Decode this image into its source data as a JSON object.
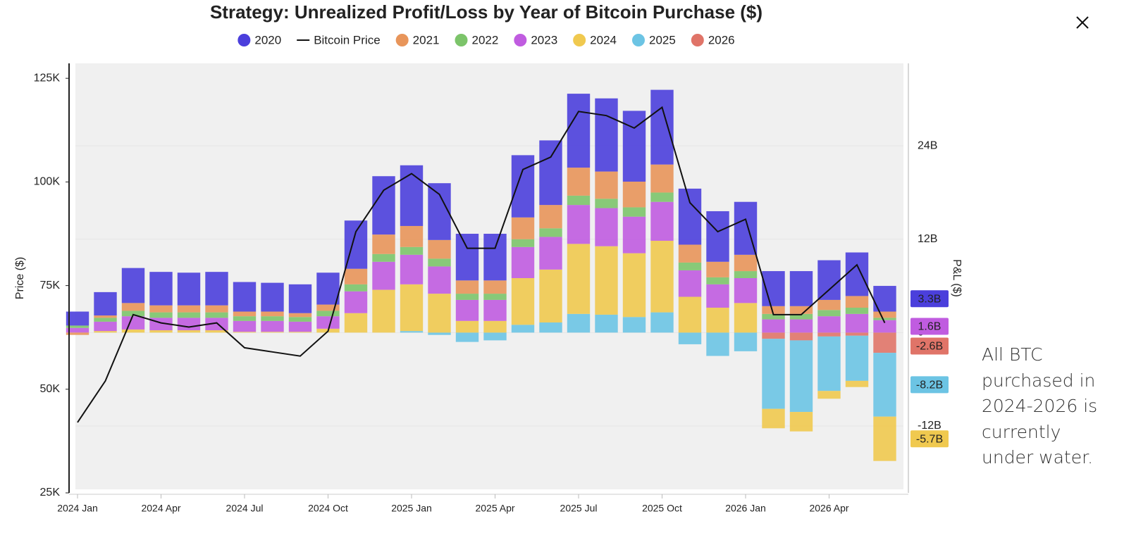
{
  "chart_data": {
    "type": "bar",
    "title": "Strategy: Unrealized Profit/Loss by Year of Bitcoin Purchase ($)",
    "y_label": "Price ($)",
    "y2_label": "P&L ($)",
    "annotation": "All BTC purchased in 2024-2026 is currently under water.",
    "categories": [
      "2024 Jan",
      null,
      null,
      "2024 Apr",
      null,
      null,
      "2024 Jul",
      null,
      null,
      "2024 Oct",
      null,
      null,
      "2025 Jan",
      null,
      null,
      "2025 Apr",
      null,
      null,
      "2025 Jul",
      null,
      null,
      "2025 Oct",
      null,
      null,
      "2026 Jan",
      null,
      null,
      "2026 Apr",
      null,
      null
    ],
    "ylim": [
      25000,
      128600
    ],
    "yticks": [
      {
        "value": 25000,
        "label": "25K"
      },
      {
        "value": 50000,
        "label": "50K"
      },
      {
        "value": 75000,
        "label": "75K"
      },
      {
        "value": 100000,
        "label": "100K"
      },
      {
        "value": 125000,
        "label": "125K"
      }
    ],
    "y2lim": [
      -20.6,
      34.6
    ],
    "y2ticks": [
      {
        "value": -12,
        "label": "-12B"
      },
      0,
      {
        "value": 12,
        "label": "12B"
      },
      {
        "value": 24,
        "label": "24B"
      }
    ],
    "grid": true,
    "stacked": true,
    "series": [
      {
        "name": "2020",
        "color": "#4b3fdc",
        "axis": "y2",
        "values": [
          1.8,
          3.0,
          4.5,
          4.3,
          4.2,
          4.3,
          3.8,
          3.7,
          3.7,
          4.1,
          6.2,
          7.5,
          7.8,
          7.3,
          6.0,
          6.0,
          8.0,
          8.3,
          9.5,
          9.4,
          9.1,
          9.6,
          7.2,
          6.5,
          6.8,
          4.5,
          4.5,
          5.1,
          5.6,
          3.3
        ],
        "value_labels": [
          null,
          null,
          null,
          null,
          null,
          null,
          null,
          null,
          null,
          null,
          null,
          null,
          null,
          null,
          null,
          null,
          null,
          null,
          null,
          null,
          null,
          null,
          null,
          null,
          null,
          null,
          null,
          null,
          null,
          "3.3B"
        ]
      },
      {
        "name": "Bitcoin Price",
        "color": "#111111",
        "axis": "y",
        "type": "line",
        "values": [
          42000,
          52000,
          68000,
          66000,
          65000,
          66000,
          60000,
          59000,
          58000,
          64000,
          88000,
          98000,
          102000,
          97000,
          84000,
          84000,
          103000,
          106000,
          117000,
          116000,
          113000,
          118000,
          95000,
          88000,
          91000,
          68000,
          68000,
          74000,
          80000,
          66000
        ]
      },
      {
        "name": "2021",
        "color": "#e8955a",
        "axis": "y2",
        "values": [
          -0.3,
          0.3,
          1.0,
          0.9,
          0.9,
          0.9,
          0.6,
          0.6,
          0.5,
          0.8,
          2.0,
          2.5,
          2.7,
          2.4,
          1.7,
          1.7,
          2.8,
          3.0,
          3.6,
          3.5,
          3.3,
          3.6,
          2.3,
          2.0,
          2.1,
          1.0,
          1.0,
          1.3,
          1.5,
          0.8
        ]
      },
      {
        "name": "2022",
        "color": "#7cc46a",
        "axis": "y2",
        "values": [
          0.3,
          0.5,
          0.7,
          0.7,
          0.7,
          0.7,
          0.6,
          0.6,
          0.6,
          0.7,
          0.9,
          1.0,
          1.0,
          1.0,
          0.8,
          0.8,
          1.0,
          1.1,
          1.2,
          1.2,
          1.2,
          1.2,
          1.0,
          0.9,
          0.9,
          0.7,
          0.7,
          0.8,
          0.8,
          0.3
        ]
      },
      {
        "name": "2023",
        "color": "#c05ce0",
        "axis": "y2",
        "values": [
          0.6,
          1.2,
          1.7,
          1.6,
          1.6,
          1.6,
          1.4,
          1.4,
          1.3,
          1.6,
          2.8,
          3.6,
          3.8,
          3.5,
          2.7,
          2.7,
          4.0,
          4.2,
          5.0,
          4.9,
          4.7,
          5.0,
          3.4,
          3.0,
          3.2,
          1.7,
          1.7,
          2.1,
          2.4,
          1.6
        ],
        "value_labels": [
          null,
          null,
          null,
          null,
          null,
          null,
          null,
          null,
          null,
          null,
          null,
          null,
          null,
          null,
          null,
          null,
          null,
          null,
          null,
          null,
          null,
          null,
          null,
          null,
          null,
          null,
          null,
          null,
          null,
          "1.6B"
        ]
      },
      {
        "name": "2024",
        "color": "#f0c94f",
        "axis": "y2",
        "values": [
          0,
          0.2,
          0.4,
          0.3,
          0.3,
          0.3,
          0.1,
          0.1,
          0.1,
          0.5,
          2.5,
          5.5,
          6.0,
          5.0,
          1.5,
          1.5,
          6.0,
          6.8,
          9.0,
          8.8,
          8.2,
          9.2,
          4.6,
          3.2,
          3.8,
          -2.5,
          -2.5,
          -1.0,
          -0.8,
          -5.7
        ],
        "value_labels": [
          null,
          null,
          null,
          null,
          null,
          null,
          null,
          null,
          null,
          null,
          null,
          null,
          null,
          null,
          null,
          null,
          null,
          null,
          null,
          null,
          null,
          null,
          null,
          null,
          null,
          null,
          null,
          null,
          null,
          "-5.7B"
        ]
      },
      {
        "name": "2025",
        "color": "#6cc4e4",
        "axis": "y2",
        "values": [
          null,
          null,
          null,
          null,
          null,
          null,
          null,
          null,
          null,
          null,
          null,
          null,
          0.2,
          -0.3,
          -1.2,
          -1.0,
          1.0,
          1.3,
          2.4,
          2.3,
          2.0,
          2.6,
          -1.5,
          -3.0,
          -2.4,
          -9.0,
          -9.2,
          -7.0,
          -5.8,
          -8.2
        ],
        "value_labels": [
          null,
          null,
          null,
          null,
          null,
          null,
          null,
          null,
          null,
          null,
          null,
          null,
          null,
          null,
          null,
          null,
          null,
          null,
          null,
          null,
          null,
          null,
          null,
          null,
          null,
          null,
          null,
          null,
          null,
          "-8.2B"
        ]
      },
      {
        "name": "2026",
        "color": "#e07468",
        "axis": "y2",
        "values": [
          null,
          null,
          null,
          null,
          null,
          null,
          null,
          null,
          null,
          null,
          null,
          null,
          null,
          null,
          null,
          null,
          null,
          null,
          null,
          null,
          null,
          null,
          null,
          null,
          0,
          -0.8,
          -1.0,
          -0.5,
          -0.4,
          -2.6
        ],
        "value_labels": [
          null,
          null,
          null,
          null,
          null,
          null,
          null,
          null,
          null,
          null,
          null,
          null,
          null,
          null,
          null,
          null,
          null,
          null,
          null,
          null,
          null,
          null,
          null,
          null,
          null,
          null,
          null,
          null,
          null,
          "-2.6B"
        ]
      }
    ]
  }
}
